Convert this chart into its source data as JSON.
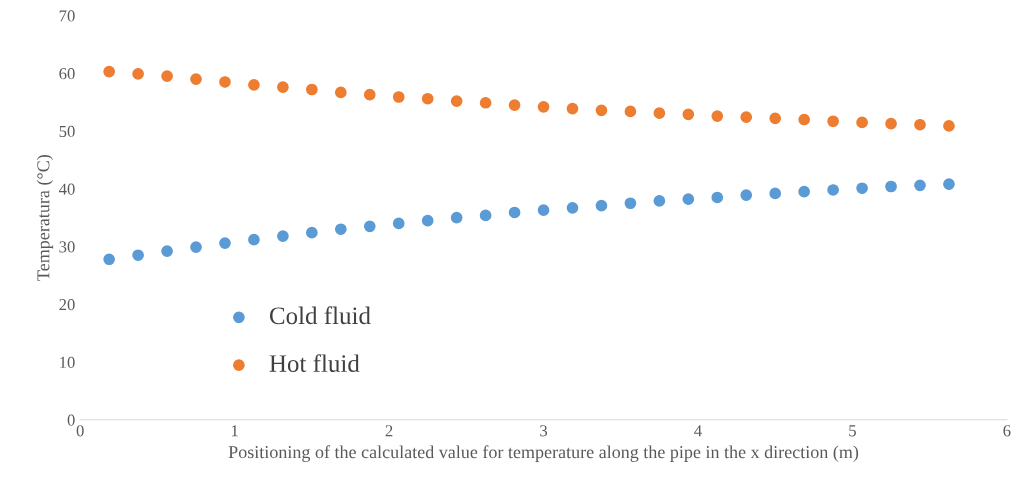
{
  "chart_data": {
    "type": "scatter",
    "xlabel": "Positioning of the calculated value for temperature along the pipe in the x direction (m)",
    "ylabel": "Temperatura (°C)",
    "x": [
      0.1875,
      0.375,
      0.5625,
      0.75,
      0.9375,
      1.125,
      1.3125,
      1.5,
      1.6875,
      1.875,
      2.0625,
      2.25,
      2.4375,
      2.625,
      2.8125,
      3.0,
      3.1875,
      3.375,
      3.5625,
      3.75,
      3.9375,
      4.125,
      4.3125,
      4.5,
      4.6875,
      4.875,
      5.0625,
      5.25,
      5.4375,
      5.625
    ],
    "series": [
      {
        "name": "Cold fluid",
        "color": "#5b9bd5",
        "values": [
          27.8,
          28.5,
          29.2,
          29.9,
          30.6,
          31.2,
          31.8,
          32.4,
          33.0,
          33.5,
          34.0,
          34.5,
          35.0,
          35.4,
          35.9,
          36.3,
          36.7,
          37.1,
          37.5,
          37.9,
          38.2,
          38.5,
          38.9,
          39.2,
          39.5,
          39.8,
          40.1,
          40.4,
          40.6,
          40.8
        ]
      },
      {
        "name": "Hot fluid",
        "color": "#ed7d31",
        "values": [
          60.3,
          59.9,
          59.5,
          59.0,
          58.5,
          58.0,
          57.6,
          57.2,
          56.7,
          56.3,
          55.9,
          55.6,
          55.2,
          54.9,
          54.5,
          54.2,
          53.9,
          53.6,
          53.4,
          53.1,
          52.9,
          52.6,
          52.4,
          52.2,
          52.0,
          51.7,
          51.5,
          51.3,
          51.1,
          50.9
        ]
      }
    ],
    "xlim": [
      0,
      6
    ],
    "xticks": [
      0,
      1,
      2,
      3,
      4,
      5,
      6
    ],
    "ylim": [
      0,
      70
    ],
    "yticks": [
      0,
      10,
      20,
      30,
      40,
      50,
      60,
      70
    ],
    "grid": false,
    "legend": "bottom left",
    "marker": "circle"
  }
}
